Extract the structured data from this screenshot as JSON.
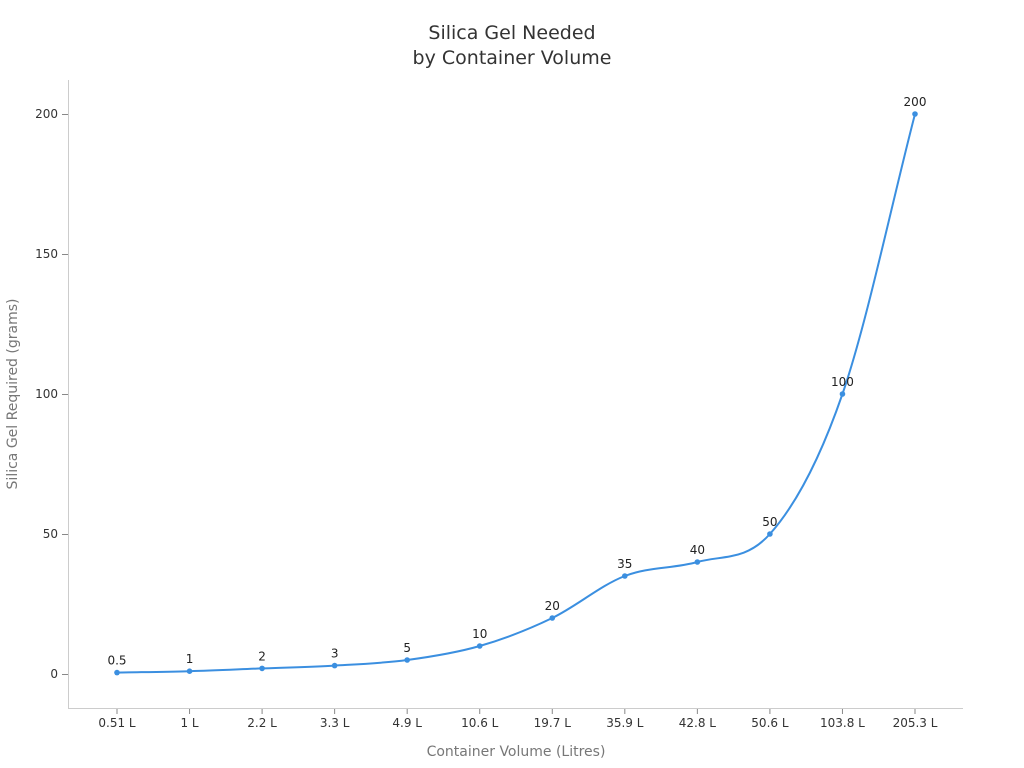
{
  "chart_data": {
    "type": "line",
    "title": "Silica Gel Needed by Container Volume",
    "title_lines": [
      "Silica Gel Needed",
      "by Container Volume"
    ],
    "xlabel": "Container Volume (Litres)",
    "ylabel": "Silica Gel Required (grams)",
    "categories": [
      "0.51 L",
      "1 L",
      "2.2 L",
      "3.3 L",
      "4.9 L",
      "10.6 L",
      "19.7 L",
      "35.9 L",
      "42.8 L",
      "50.6 L",
      "103.8 L",
      "205.3 L"
    ],
    "values": [
      0.5,
      1,
      2,
      3,
      5,
      10,
      20,
      35,
      40,
      50,
      100,
      200
    ],
    "data_labels": [
      "0.5",
      "1",
      "2",
      "3",
      "5",
      "10",
      "20",
      "35",
      "40",
      "50",
      "100",
      "200"
    ],
    "yticks": [
      0,
      50,
      100,
      150,
      200
    ],
    "ylim": [
      -12,
      212
    ],
    "grid": false,
    "legend": null,
    "series_color": "#3b8fe0",
    "smooth": true
  }
}
